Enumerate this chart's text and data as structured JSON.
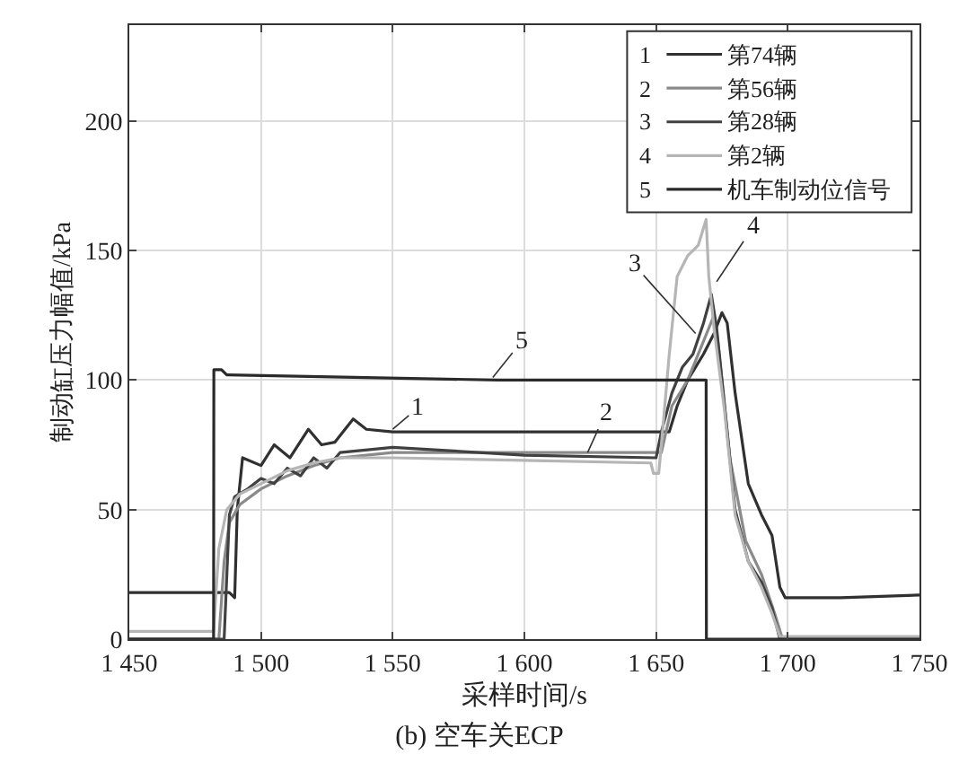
{
  "chart_data": {
    "type": "line",
    "title": "(b) 空车关ECP",
    "xlabel": "采样时间/s",
    "ylabel": "制动缸压力幅值/kPa",
    "xlim": [
      1450,
      1750
    ],
    "ylim": [
      0,
      237
    ],
    "xticks": [
      {
        "value": 1450,
        "label": "1 450"
      },
      {
        "value": 1500,
        "label": "1 500"
      },
      {
        "value": 1550,
        "label": "1 550"
      },
      {
        "value": 1600,
        "label": "1 600"
      },
      {
        "value": 1650,
        "label": "1 650"
      },
      {
        "value": 1700,
        "label": "1 700"
      },
      {
        "value": 1750,
        "label": "1 750"
      }
    ],
    "yticks": [
      0,
      50,
      100,
      150,
      200
    ],
    "grid": true,
    "legend": "top right",
    "line_style": "solid",
    "marker": "none",
    "series": [
      {
        "name": "第74辆",
        "color": "#303030",
        "x": [
          1450,
          1488,
          1490,
          1491,
          1493,
          1500,
          1505,
          1511,
          1518,
          1523,
          1528,
          1535,
          1540,
          1550,
          1600,
          1652,
          1655,
          1658,
          1662,
          1668,
          1672,
          1675,
          1677,
          1680,
          1685,
          1690,
          1694,
          1697,
          1699,
          1720,
          1750
        ],
        "values": [
          18,
          18,
          16,
          50,
          70,
          67,
          75,
          70,
          81,
          75,
          76,
          85,
          81,
          80,
          80,
          80,
          80,
          90,
          100,
          110,
          118,
          126,
          122,
          95,
          60,
          48,
          40,
          20,
          16,
          16,
          17
        ]
      },
      {
        "name": "第56辆",
        "color": "#8a8a8a",
        "x": [
          1450,
          1484,
          1486,
          1488,
          1492,
          1500,
          1510,
          1520,
          1530,
          1550,
          1600,
          1650,
          1652,
          1656,
          1662,
          1668,
          1672,
          1674,
          1678,
          1684,
          1690,
          1695,
          1698,
          1750
        ],
        "values": [
          0,
          0,
          30,
          45,
          52,
          58,
          63,
          67,
          70,
          72,
          72,
          72,
          72,
          90,
          100,
          115,
          125,
          110,
          70,
          38,
          25,
          10,
          0,
          0
        ]
      },
      {
        "name": "第28辆",
        "color": "#404040",
        "x": [
          1450,
          1486,
          1488,
          1490,
          1495,
          1500,
          1505,
          1510,
          1515,
          1520,
          1525,
          1530,
          1550,
          1600,
          1650,
          1652,
          1656,
          1660,
          1664,
          1668,
          1671,
          1673,
          1676,
          1680,
          1685,
          1690,
          1694,
          1697,
          1750
        ],
        "values": [
          0,
          0,
          48,
          55,
          58,
          62,
          60,
          66,
          63,
          70,
          66,
          72,
          74,
          71,
          70,
          80,
          95,
          105,
          110,
          122,
          133,
          120,
          90,
          50,
          30,
          22,
          12,
          0,
          0
        ]
      },
      {
        "name": "第2辆",
        "color": "#b5b5b5",
        "x": [
          1450,
          1482,
          1484,
          1487,
          1492,
          1500,
          1510,
          1520,
          1530,
          1550,
          1600,
          1648,
          1649,
          1651,
          1652,
          1655,
          1658,
          1662,
          1666,
          1669,
          1670,
          1672,
          1676,
          1680,
          1685,
          1690,
          1694,
          1697,
          1750
        ],
        "values": [
          3,
          3,
          35,
          50,
          56,
          60,
          65,
          68,
          70,
          70,
          69,
          68,
          64,
          64,
          75,
          110,
          140,
          148,
          152,
          162,
          140,
          120,
          88,
          48,
          30,
          20,
          10,
          1,
          1
        ]
      },
      {
        "name": "机车制动位信号",
        "color": "#2a2a2a",
        "x": [
          1450,
          1482,
          1482.1,
          1485,
          1487,
          1590,
          1669,
          1669.1,
          1750
        ],
        "values": [
          0,
          0,
          104,
          104,
          102,
          100,
          100,
          0,
          0
        ]
      }
    ],
    "annotations": [
      {
        "text": "1",
        "x": 1550,
        "y": 81
      },
      {
        "text": "2",
        "x": 1624,
        "y": 72
      },
      {
        "text": "3",
        "x": 1665,
        "y": 118
      },
      {
        "text": "4",
        "x": 1673,
        "y": 138
      },
      {
        "text": "5",
        "x": 1588,
        "y": 101
      }
    ]
  }
}
